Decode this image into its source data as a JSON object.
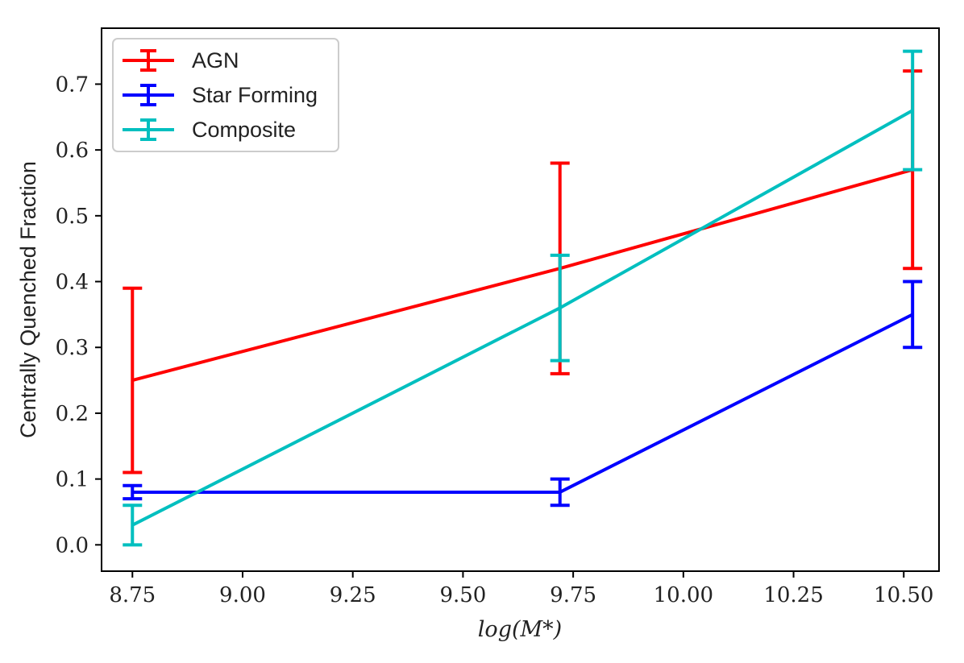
{
  "chart_data": {
    "type": "line",
    "title": "",
    "xlabel": "log(M*)",
    "ylabel": "Centrally Quenched Fraction",
    "xlim": [
      8.68,
      10.58
    ],
    "ylim": [
      -0.04,
      0.785
    ],
    "xticks": [
      8.75,
      9.0,
      9.25,
      9.5,
      9.75,
      10.0,
      10.25,
      10.5
    ],
    "xtick_labels": [
      "8.75",
      "9.00",
      "9.25",
      "9.50",
      "9.75",
      "10.00",
      "10.25",
      "10.50"
    ],
    "yticks": [
      0.0,
      0.1,
      0.2,
      0.3,
      0.4,
      0.5,
      0.6,
      0.7
    ],
    "ytick_labels": [
      "0.0",
      "0.1",
      "0.2",
      "0.3",
      "0.4",
      "0.5",
      "0.6",
      "0.7"
    ],
    "grid": false,
    "legend_position": "top-left",
    "series": [
      {
        "name": "AGN",
        "color": "#ff0000",
        "x": [
          8.75,
          9.72,
          10.52
        ],
        "y": [
          0.25,
          0.42,
          0.57
        ],
        "err_low": [
          0.11,
          0.26,
          0.42
        ],
        "err_high": [
          0.39,
          0.58,
          0.72
        ]
      },
      {
        "name": "Star Forming",
        "color": "#0000ff",
        "x": [
          8.75,
          9.72,
          10.52
        ],
        "y": [
          0.08,
          0.08,
          0.35
        ],
        "err_low": [
          0.07,
          0.06,
          0.3
        ],
        "err_high": [
          0.09,
          0.1,
          0.4
        ]
      },
      {
        "name": "Composite",
        "color": "#00bfbf",
        "x": [
          8.75,
          9.72,
          10.52
        ],
        "y": [
          0.03,
          0.36,
          0.66
        ],
        "err_low": [
          0.0,
          0.28,
          0.57
        ],
        "err_high": [
          0.06,
          0.44,
          0.75
        ]
      }
    ]
  }
}
